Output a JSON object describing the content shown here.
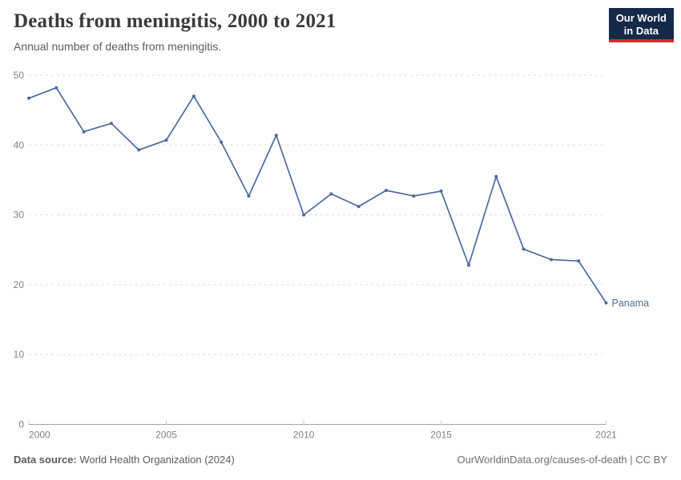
{
  "header": {
    "title": "Deaths from meningitis, 2000 to 2021",
    "subtitle": "Annual number of deaths from meningitis."
  },
  "logo": {
    "line1": "Our World",
    "line2": "in Data",
    "bg_color": "#152949",
    "accent_color": "#CE2E31"
  },
  "chart_data": {
    "type": "line",
    "title": "Deaths from meningitis, 2000 to 2021",
    "subtitle": "Annual number of deaths from meningitis.",
    "xlabel": "",
    "ylabel": "",
    "xlim": [
      2000,
      2021
    ],
    "ylim": [
      0,
      50
    ],
    "grid": "horizontal-dashed",
    "legend_position": "end-of-line",
    "x_ticks": [
      2000,
      2005,
      2010,
      2015,
      2021
    ],
    "y_ticks": [
      0,
      10,
      20,
      30,
      40,
      50
    ],
    "x": [
      2000,
      2001,
      2002,
      2003,
      2004,
      2005,
      2006,
      2007,
      2008,
      2009,
      2010,
      2011,
      2012,
      2013,
      2014,
      2015,
      2016,
      2017,
      2018,
      2019,
      2020,
      2021
    ],
    "series": [
      {
        "name": "Panama",
        "color": "#4C6A9D",
        "values": [
          46.7,
          48.2,
          41.9,
          43.1,
          39.3,
          40.7,
          47.0,
          40.4,
          32.7,
          41.4,
          30.0,
          33.0,
          31.2,
          33.5,
          32.7,
          33.4,
          22.8,
          35.5,
          25.1,
          23.6,
          23.4,
          17.4
        ]
      }
    ]
  },
  "colors": {
    "line": "#4C6A9D",
    "gridline": "#dedede",
    "axis": "#a3a3a3",
    "tick": "#c8c8c8",
    "tick_label": "#808080",
    "title": "#3a3a3a",
    "subtitle": "#5b5b5b"
  },
  "footer": {
    "source_label": "Data source:",
    "source_value": "World Health Organization (2024)",
    "credit": "OurWorldinData.org/causes-of-death | CC BY"
  }
}
